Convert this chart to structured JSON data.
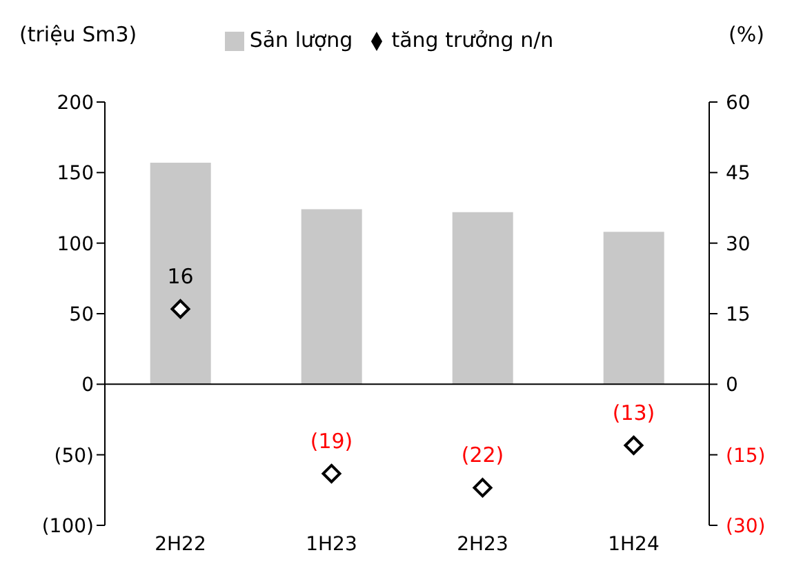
{
  "chart_data": {
    "type": "bar",
    "ylabel": "(triệu Sm3)",
    "y2label": "(%)",
    "categories": [
      "2H22",
      "1H23",
      "2H23",
      "1H24"
    ],
    "series": [
      {
        "name": "Sản lượng",
        "type": "bar",
        "color": "#c8c8c8",
        "values": [
          157,
          124,
          122,
          108
        ]
      },
      {
        "name": "tăng trưởng n/n",
        "type": "scatter",
        "axis": "y2",
        "color": "#000000",
        "marker": "diamond",
        "values": [
          16,
          -19,
          -22,
          -13
        ],
        "value_labels": [
          "16",
          "(19)",
          "(22)",
          "(13)"
        ]
      }
    ],
    "ylim": [
      -100,
      200
    ],
    "yticks": [
      {
        "value": -100,
        "label": "(100)"
      },
      {
        "value": -50,
        "label": "(50)"
      },
      0,
      50,
      100,
      150,
      200
    ],
    "y2lim": [
      -30,
      60
    ],
    "y2ticks": [
      {
        "value": -30,
        "label": "(30)"
      },
      {
        "value": -15,
        "label": "(15)"
      },
      0,
      15,
      30,
      45,
      60
    ],
    "ref_lines": [
      {
        "axis": "y",
        "value": 0,
        "color": "#000000"
      }
    ],
    "grid": false,
    "legend": "top"
  }
}
